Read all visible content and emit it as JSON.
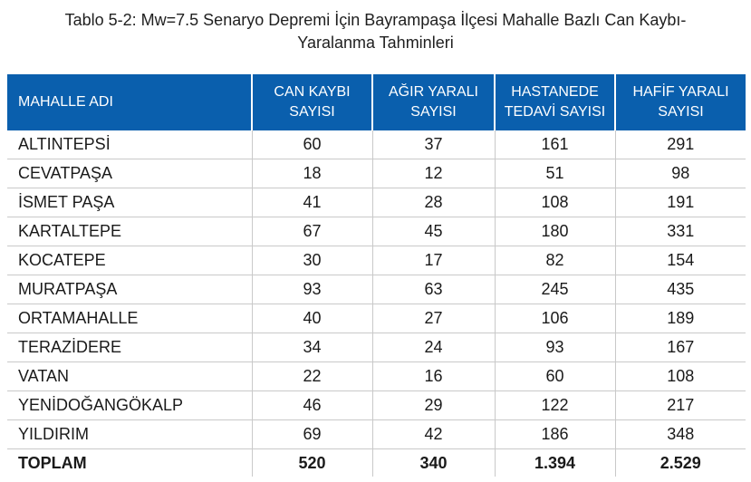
{
  "caption": {
    "line1": "Tablo 5-2: Mw=7.5 Senaryo Depremi İçin Bayrampaşa İlçesi Mahalle Bazlı Can Kaybı-",
    "line2": "Yaralanma Tahminleri"
  },
  "table": {
    "headers": [
      [
        "MAHALLE ADI"
      ],
      [
        "CAN KAYBI",
        "SAYISI"
      ],
      [
        "AĞIR YARALI",
        "SAYISI"
      ],
      [
        "HASTANEDE",
        "TEDAVİ SAYISI"
      ],
      [
        "HAFİF YARALI",
        "SAYISI"
      ]
    ],
    "rows": [
      [
        "ALTINTEPSİ",
        "60",
        "37",
        "161",
        "291"
      ],
      [
        "CEVATPAŞA",
        "18",
        "12",
        "51",
        "98"
      ],
      [
        "İSMET PAŞA",
        "41",
        "28",
        "108",
        "191"
      ],
      [
        "KARTALTEPE",
        "67",
        "45",
        "180",
        "331"
      ],
      [
        "KOCATEPE",
        "30",
        "17",
        "82",
        "154"
      ],
      [
        "MURATPAŞA",
        "93",
        "63",
        "245",
        "435"
      ],
      [
        "ORTAMAHALLE",
        "40",
        "27",
        "106",
        "189"
      ],
      [
        "TERAZİDERE",
        "34",
        "24",
        "93",
        "167"
      ],
      [
        "VATAN",
        "22",
        "16",
        "60",
        "108"
      ],
      [
        "YENİDOĞANGÖKALP",
        "46",
        "29",
        "122",
        "217"
      ],
      [
        "YILDIRIM",
        "69",
        "42",
        "186",
        "348"
      ]
    ],
    "total": [
      "TOPLAM",
      "520",
      "340",
      "1.394",
      "2.529"
    ]
  },
  "colors": {
    "header_bg": "#0a5fad",
    "header_text": "#ffffff",
    "row_border": "#c9c9c9"
  }
}
